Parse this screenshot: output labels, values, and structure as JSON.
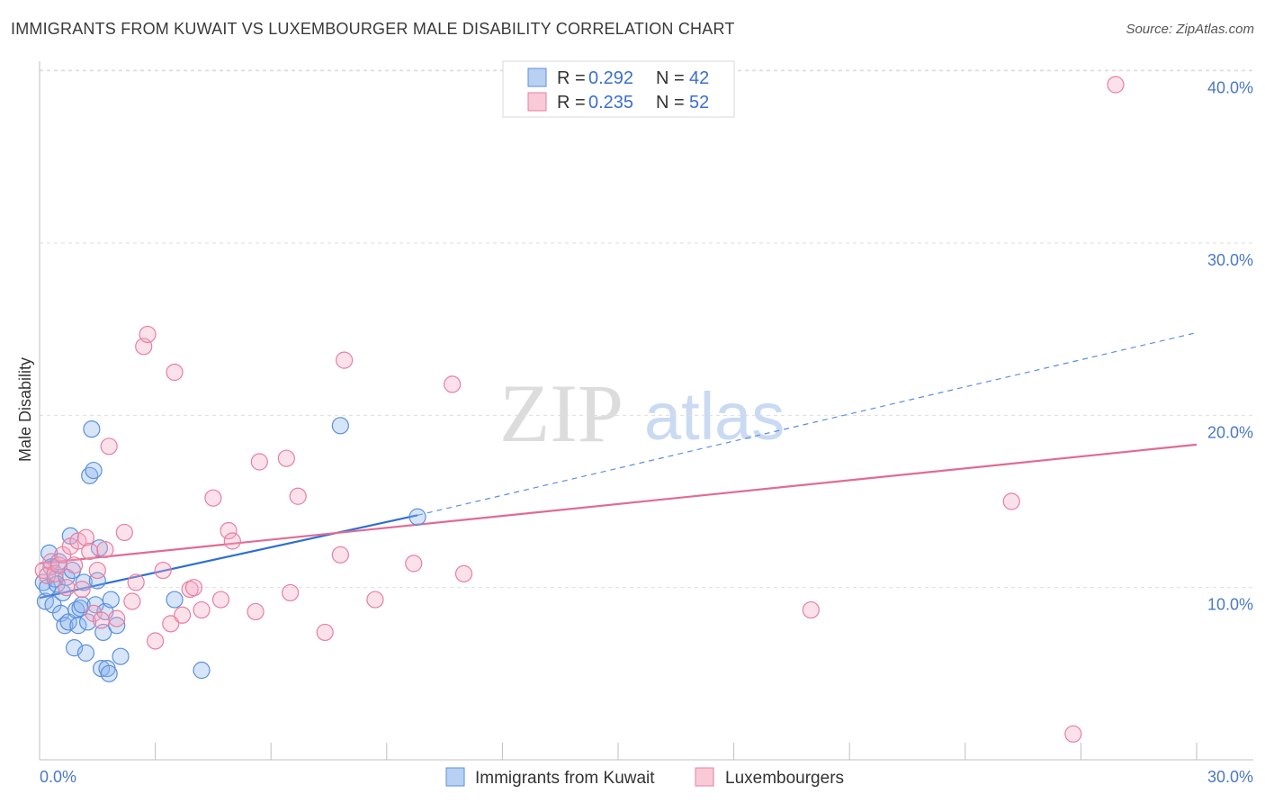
{
  "header": {
    "title": "IMMIGRANTS FROM KUWAIT VS LUXEMBOURGER MALE DISABILITY CORRELATION CHART",
    "source": "Source: ZipAtlas.com"
  },
  "watermark": {
    "zip": "ZIP",
    "atlas": "atlas"
  },
  "legend_top": [
    {
      "r_label": "R =",
      "r_value": "0.292",
      "n_label": "N =",
      "n_value": "42"
    },
    {
      "r_label": "R =",
      "r_value": "0.235",
      "n_label": "N =",
      "n_value": "52"
    }
  ],
  "chart_data": {
    "type": "scatter",
    "title": "IMMIGRANTS FROM KUWAIT VS LUXEMBOURGER MALE DISABILITY CORRELATION CHART",
    "xlabel": "",
    "ylabel": "Male Disability",
    "xlim": [
      0,
      30
    ],
    "ylim": [
      0,
      41.5
    ],
    "x_tick_labels": [
      "0.0%",
      "30.0%"
    ],
    "y_ticks": [
      10,
      20,
      30,
      40
    ],
    "y_tick_labels": [
      "10.0%",
      "20.0%",
      "30.0%",
      "40.0%"
    ],
    "grid": true,
    "legend_position": "bottom-center",
    "colors": {
      "kuwait": "#5b8fdc",
      "luxembourger": "#e87fa0",
      "tick": "#4a78c8"
    },
    "series": [
      {
        "name": "Immigrants from Kuwait",
        "color": "#5b8fdc",
        "trend": {
          "x0": 0.0,
          "y0": 9.4,
          "x1": 9.8,
          "y1": 14.2,
          "dash_to_x": 30.0,
          "dash_to_y": 24.8
        },
        "x": [
          0.1,
          0.15,
          0.2,
          0.25,
          0.3,
          0.35,
          0.4,
          0.45,
          0.5,
          0.55,
          0.6,
          0.65,
          0.7,
          0.75,
          0.8,
          0.85,
          0.9,
          0.95,
          1.0,
          1.05,
          1.1,
          1.15,
          1.2,
          1.25,
          1.3,
          1.35,
          1.4,
          1.45,
          1.5,
          1.55,
          1.6,
          1.65,
          1.7,
          1.75,
          1.8,
          1.85,
          2.0,
          2.1,
          3.5,
          4.2,
          7.8,
          9.8
        ],
        "y": [
          10.3,
          9.2,
          10.0,
          12.0,
          11.2,
          9.0,
          10.5,
          10.2,
          11.5,
          8.5,
          9.7,
          7.8,
          10.6,
          8.0,
          13.0,
          11.0,
          6.5,
          8.7,
          7.8,
          8.8,
          9.0,
          10.3,
          6.2,
          8.0,
          16.5,
          19.2,
          16.8,
          9.0,
          10.4,
          12.3,
          5.3,
          7.4,
          8.6,
          5.3,
          5.0,
          9.3,
          7.8,
          6.0,
          9.3,
          5.2,
          19.4,
          14.1
        ]
      },
      {
        "name": "Luxembourgers",
        "color": "#e87fa0",
        "trend": {
          "x0": 0.0,
          "y0": 11.4,
          "x1": 30.0,
          "y1": 18.3
        },
        "x": [
          0.1,
          0.2,
          0.3,
          0.4,
          0.5,
          0.6,
          0.7,
          0.8,
          0.9,
          1.0,
          1.1,
          1.2,
          1.3,
          1.4,
          1.5,
          1.6,
          1.7,
          1.8,
          2.0,
          2.2,
          2.4,
          2.5,
          2.7,
          2.8,
          3.0,
          3.2,
          3.4,
          3.5,
          3.7,
          3.9,
          4.0,
          4.2,
          4.5,
          4.7,
          4.9,
          5.0,
          5.6,
          5.7,
          6.4,
          6.5,
          6.7,
          7.4,
          7.8,
          7.9,
          8.7,
          9.7,
          10.7,
          11.0,
          20.0,
          25.2,
          26.8,
          27.9
        ],
        "y": [
          11.0,
          10.7,
          11.5,
          10.8,
          11.3,
          11.9,
          10.0,
          12.4,
          11.3,
          12.7,
          9.9,
          12.9,
          12.1,
          8.5,
          11.0,
          8.1,
          12.2,
          18.2,
          8.2,
          13.2,
          9.2,
          10.3,
          24.0,
          24.7,
          6.9,
          11.0,
          7.9,
          22.5,
          8.4,
          9.9,
          10.0,
          8.7,
          15.2,
          9.3,
          13.3,
          12.7,
          8.6,
          17.3,
          17.5,
          9.7,
          15.3,
          7.4,
          11.9,
          23.2,
          9.3,
          11.4,
          21.8,
          10.8,
          8.7,
          15.0,
          1.5,
          39.2
        ]
      }
    ]
  },
  "legend_bottom": [
    {
      "label": "Immigrants from Kuwait"
    },
    {
      "label": "Luxembourgers"
    }
  ]
}
